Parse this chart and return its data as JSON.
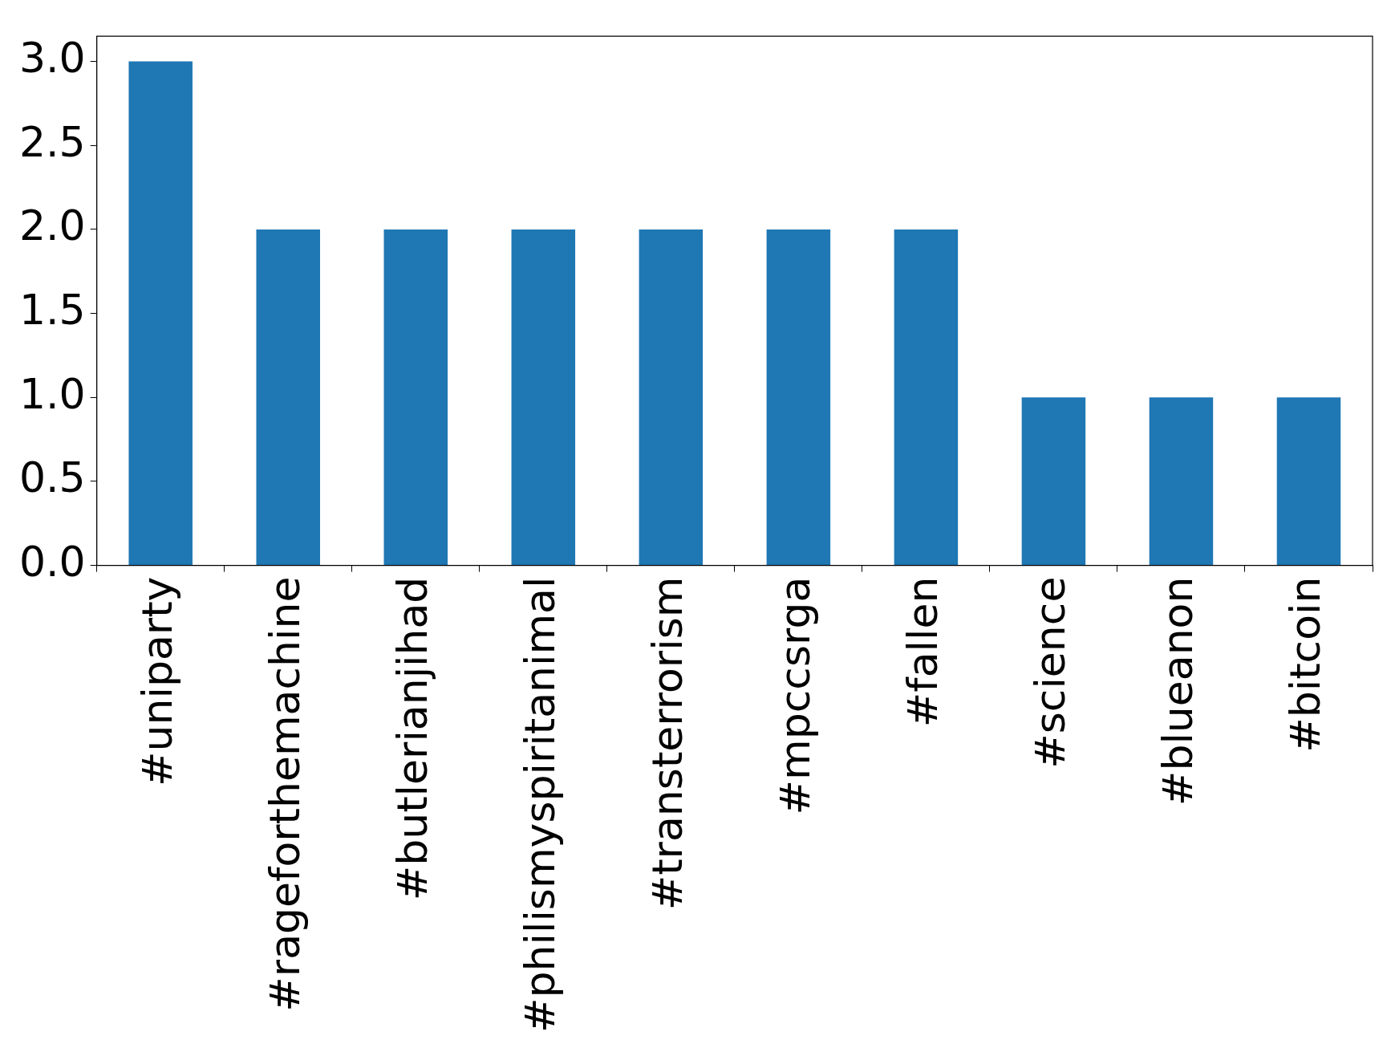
{
  "chart_data": {
    "type": "bar",
    "categories": [
      "#uniparty",
      "#rageforthemachine",
      "#butlerianjihad",
      "#philismyspiritanimal",
      "#transterrorism",
      "#mpccsrga",
      "#fallen",
      "#science",
      "#blueanon",
      "#bitcoin"
    ],
    "values": [
      3,
      2,
      2,
      2,
      2,
      2,
      2,
      1,
      1,
      1
    ],
    "color": "#1f77b4",
    "ylim": [
      0,
      3.15
    ],
    "yticks": [
      {
        "value": 0,
        "label": "0.0"
      },
      {
        "value": 0.5,
        "label": "0.5"
      },
      {
        "value": 1,
        "label": "1.0"
      },
      {
        "value": 1.5,
        "label": "1.5"
      },
      {
        "value": 2,
        "label": "2.0"
      },
      {
        "value": 2.5,
        "label": "2.5"
      },
      {
        "value": 3,
        "label": "3.0"
      }
    ],
    "grid": false,
    "legend": false
  }
}
